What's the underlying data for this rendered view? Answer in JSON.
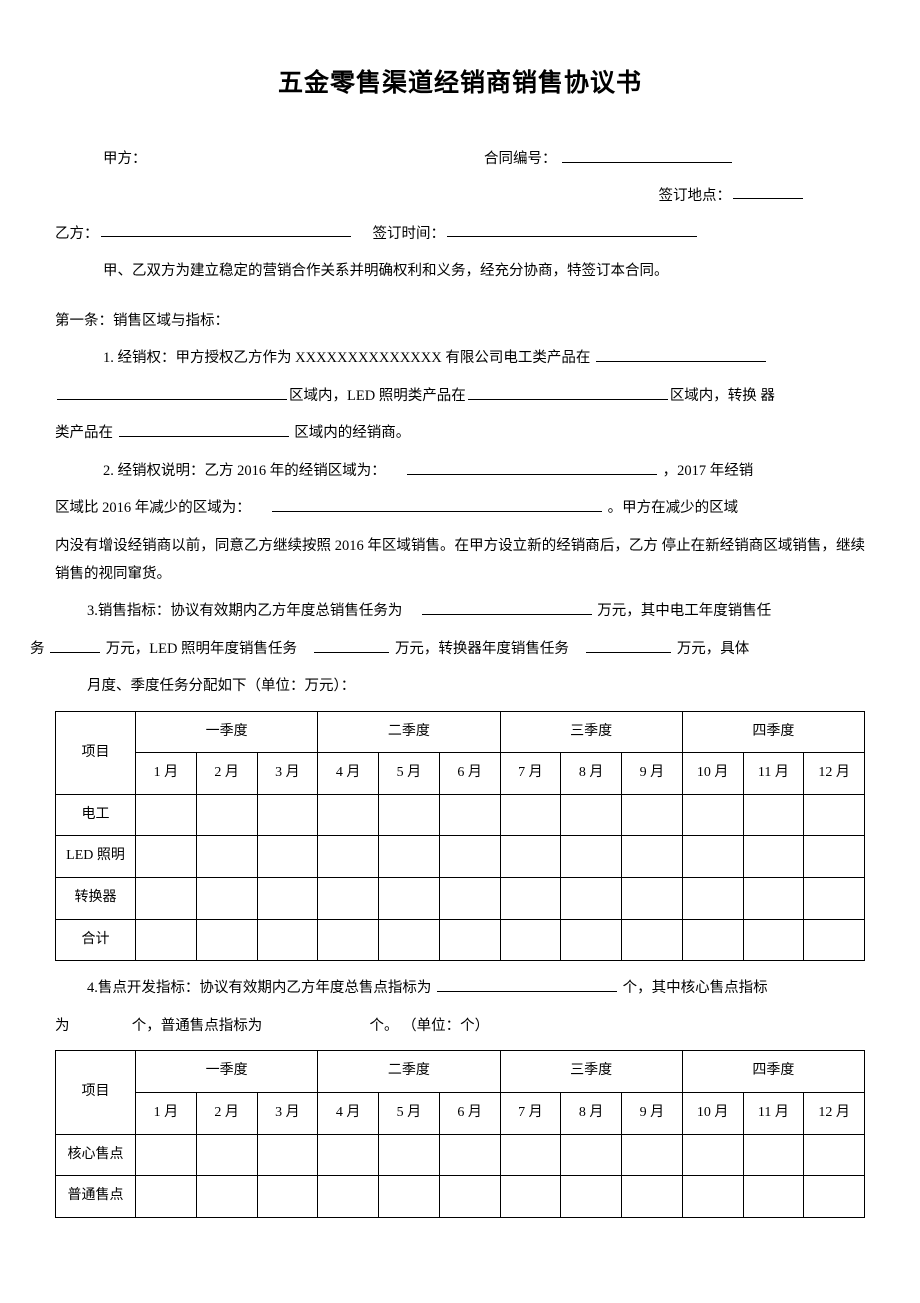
{
  "title": "五金零售渠道经销商销售协议书",
  "labels": {
    "partyA": "甲方：",
    "contractNo": "合同编号：",
    "signPlace": "签订地点：",
    "partyB": "乙方：",
    "signTime": "签订时间："
  },
  "intro": "甲、乙双方为建立稳定的营销合作关系并明确权利和义务，经充分协商，特签订本合同。",
  "article1": {
    "heading": "第一条：销售区域与指标：",
    "item1_a": "1. 经销权：甲方授权乙方作为  XXXXXXXXXXXXXX 有限公司电工类产品在",
    "item1_b_pre": "",
    "item1_b_mid1": "区域内，LED 照明类产品在",
    "item1_b_mid2": "区域内，转换  器",
    "item1_c_pre": "类产品在",
    "item1_c_post": "区域内的经销商。",
    "item2_a": "2. 经销权说明：乙方  2016 年的经销区域为：",
    "item2_a_tail": "，2017 年经销",
    "item2_b_pre": "区域比 2016 年减少的区域为：",
    "item2_b_tail": "。甲方在减少的区域",
    "item2_c": "内没有增设经销商以前，同意乙方继续按照 2016 年区域销售。在甲方设立新的经销商后，乙方  停止在新经销商区域销售，继续销售的视同窜货。",
    "item3_a": "3.销售指标：协议有效期内乙方年度总销售任务为",
    "item3_a_tail": "万元，其中电工年度销售任",
    "item3_b_pre": "务",
    "item3_b_m1": "万元，LED 照明年度销售任务",
    "item3_b_m2": "万元，转换器年度销售任务",
    "item3_b_tail": "万元，具体",
    "item3_c": "月度、季度任务分配如下（单位：万元）：",
    "item4_a": "4.售点开发指标：协议有效期内乙方年度总售点指标为",
    "item4_a_tail": "个，其中核心售点指标",
    "item4_b_pre": "为",
    "item4_b_m1": "个，普通售点指标为",
    "item4_b_m2": "个。 （单位：个）"
  },
  "table1": {
    "colProject": "项目",
    "quarters": [
      "一季度",
      "二季度",
      "三季度",
      "四季度"
    ],
    "months": [
      "1 月",
      "2 月",
      "3 月",
      "4 月",
      "5 月",
      "6 月",
      "7 月",
      "8 月",
      "9 月",
      "10 月",
      "11 月",
      "12 月"
    ],
    "rows": [
      "电工",
      "LED 照明",
      "转换器",
      "合计"
    ]
  },
  "table2": {
    "colProject": "项目",
    "quarters": [
      "一季度",
      "二季度",
      "三季度",
      "四季度"
    ],
    "months": [
      "1 月",
      "2 月",
      "3 月",
      "4 月",
      "5 月",
      "6 月",
      "7 月",
      "8 月",
      "9 月",
      "10 月",
      "11 月",
      "12 月"
    ],
    "rows": [
      "核心售点",
      "普通售点"
    ]
  },
  "style": {
    "page_bg": "#ffffff",
    "text_color": "#000000",
    "border_color": "#000000",
    "title_fontsize": 25,
    "body_fontsize": 14.5,
    "table_fontsize": 14
  }
}
